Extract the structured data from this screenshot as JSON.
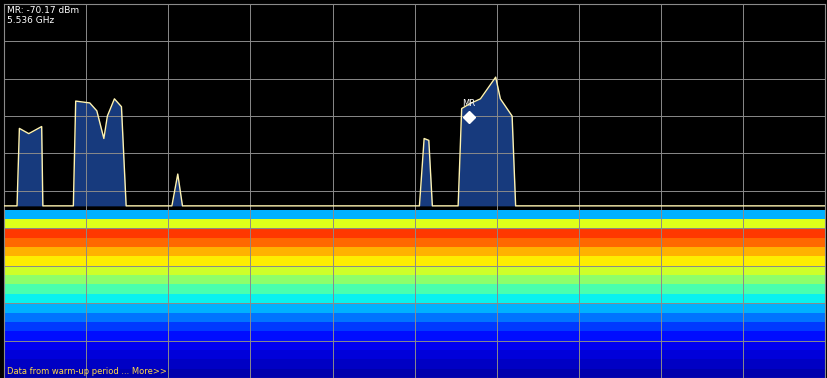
{
  "chart_data": {
    "type": "line",
    "x": [
      5.14,
      5.151,
      5.153,
      5.161,
      5.172,
      5.173,
      5.199,
      5.201,
      5.213,
      5.219,
      5.225,
      5.228,
      5.234,
      5.24,
      5.244,
      5.283,
      5.288,
      5.292,
      5.494,
      5.498,
      5.502,
      5.505,
      5.527,
      5.53,
      5.537,
      5.546,
      5.559,
      5.563,
      5.573,
      5.576,
      5.84
    ],
    "values": [
      -94,
      -94,
      -73.3,
      -74.7,
      -72.8,
      -94,
      -94,
      -66,
      -66.5,
      -68.6,
      -76,
      -70,
      -65.4,
      -67.5,
      -94,
      -94,
      -85.5,
      -94,
      -94,
      -76,
      -76.5,
      -94,
      -94,
      -68,
      -66.7,
      -65.4,
      -59.6,
      -65.4,
      -70,
      -94,
      -94
    ],
    "color": "#fff3b0",
    "xlim": [
      5.14,
      5.84
    ],
    "xticks": [
      5.14,
      5.21,
      5.28,
      5.35,
      5.42,
      5.49,
      5.56,
      5.63,
      5.7,
      5.77,
      5.84
    ],
    "ylim": [
      -140,
      -40
    ],
    "yticks": [
      -140,
      -130,
      -120,
      -110,
      -100,
      -90,
      -80,
      -70,
      -60,
      -50,
      -40
    ],
    "grid": true,
    "tick_labels": false,
    "density_levels": [
      -140,
      -137.5,
      -135,
      -132.5,
      -130,
      -127.5,
      -125,
      -122.5,
      -120,
      -117.5,
      -115,
      -112.5,
      -110,
      -107.5,
      -105,
      -102.5,
      -100,
      -97.5,
      -95
    ],
    "density_values": [
      4,
      6,
      8,
      10,
      14,
      18,
      24,
      30,
      36,
      44,
      52,
      60,
      66,
      72,
      80,
      85,
      62,
      30
    ],
    "marker": {
      "label": "MR",
      "x": 5.536,
      "y": -70.17
    },
    "readout": [
      "MR: -70.17 dBm",
      "5.536 GHz"
    ],
    "footer": "Data from warm-up period ... More>>"
  }
}
